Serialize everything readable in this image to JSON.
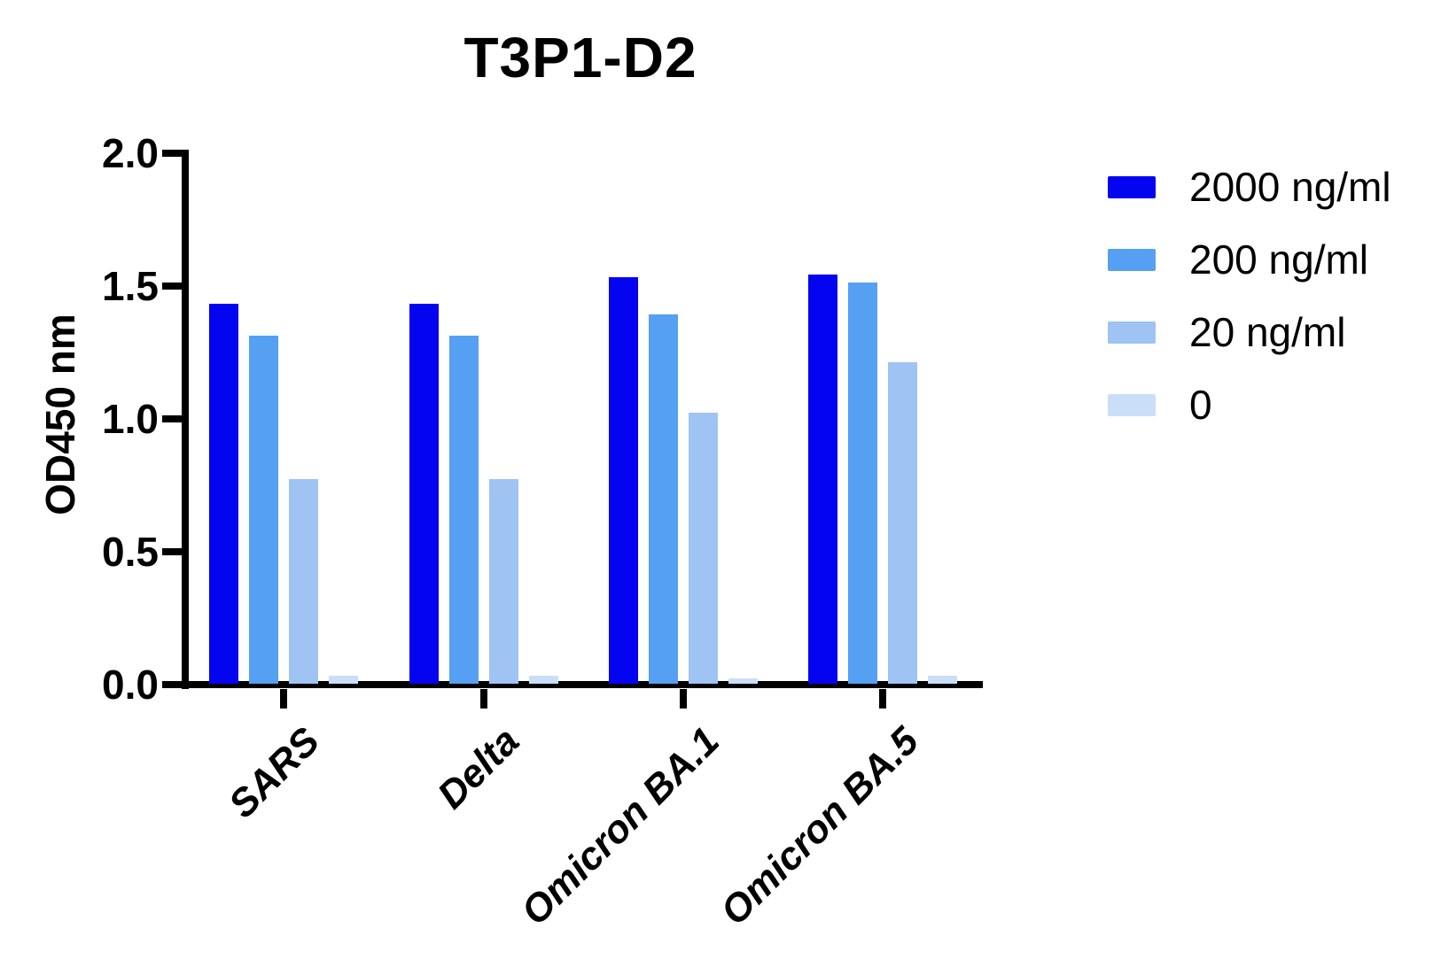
{
  "title": "T3P1-D2",
  "y_axis": {
    "label": "OD450 nm",
    "tick_labels": [
      "2.0",
      "1.5",
      "1.0",
      "0.5",
      "0.0"
    ]
  },
  "legend": {
    "position": "right",
    "items": [
      {
        "label": "2000 ng/ml",
        "color": "#0404F0"
      },
      {
        "label": "200 ng/ml",
        "color": "#55A0F2"
      },
      {
        "label": "20 ng/ml",
        "color": "#9FC3F3"
      },
      {
        "label": "0",
        "color": "#CBDEF8"
      }
    ]
  },
  "chart_data": {
    "type": "bar",
    "title": "T3P1-D2",
    "xlabel": "",
    "ylabel": "OD450 nm",
    "ylim": [
      0,
      2.0
    ],
    "yticks": [
      0.0,
      0.5,
      1.0,
      1.5,
      2.0
    ],
    "grid": false,
    "legend_position": "right",
    "categories": [
      "SARS",
      "Delta",
      "Omicron BA.1",
      "Omicron BA.5"
    ],
    "series": [
      {
        "name": "2000 ng/ml",
        "color": "#0404F0",
        "values": [
          1.43,
          1.43,
          1.53,
          1.54
        ]
      },
      {
        "name": "200 ng/ml",
        "color": "#55A0F2",
        "values": [
          1.31,
          1.31,
          1.39,
          1.51
        ]
      },
      {
        "name": "20 ng/ml",
        "color": "#9FC3F3",
        "values": [
          0.77,
          0.77,
          1.02,
          1.21
        ]
      },
      {
        "name": "0",
        "color": "#CBDEF8",
        "values": [
          0.03,
          0.03,
          0.02,
          0.03
        ]
      }
    ]
  }
}
